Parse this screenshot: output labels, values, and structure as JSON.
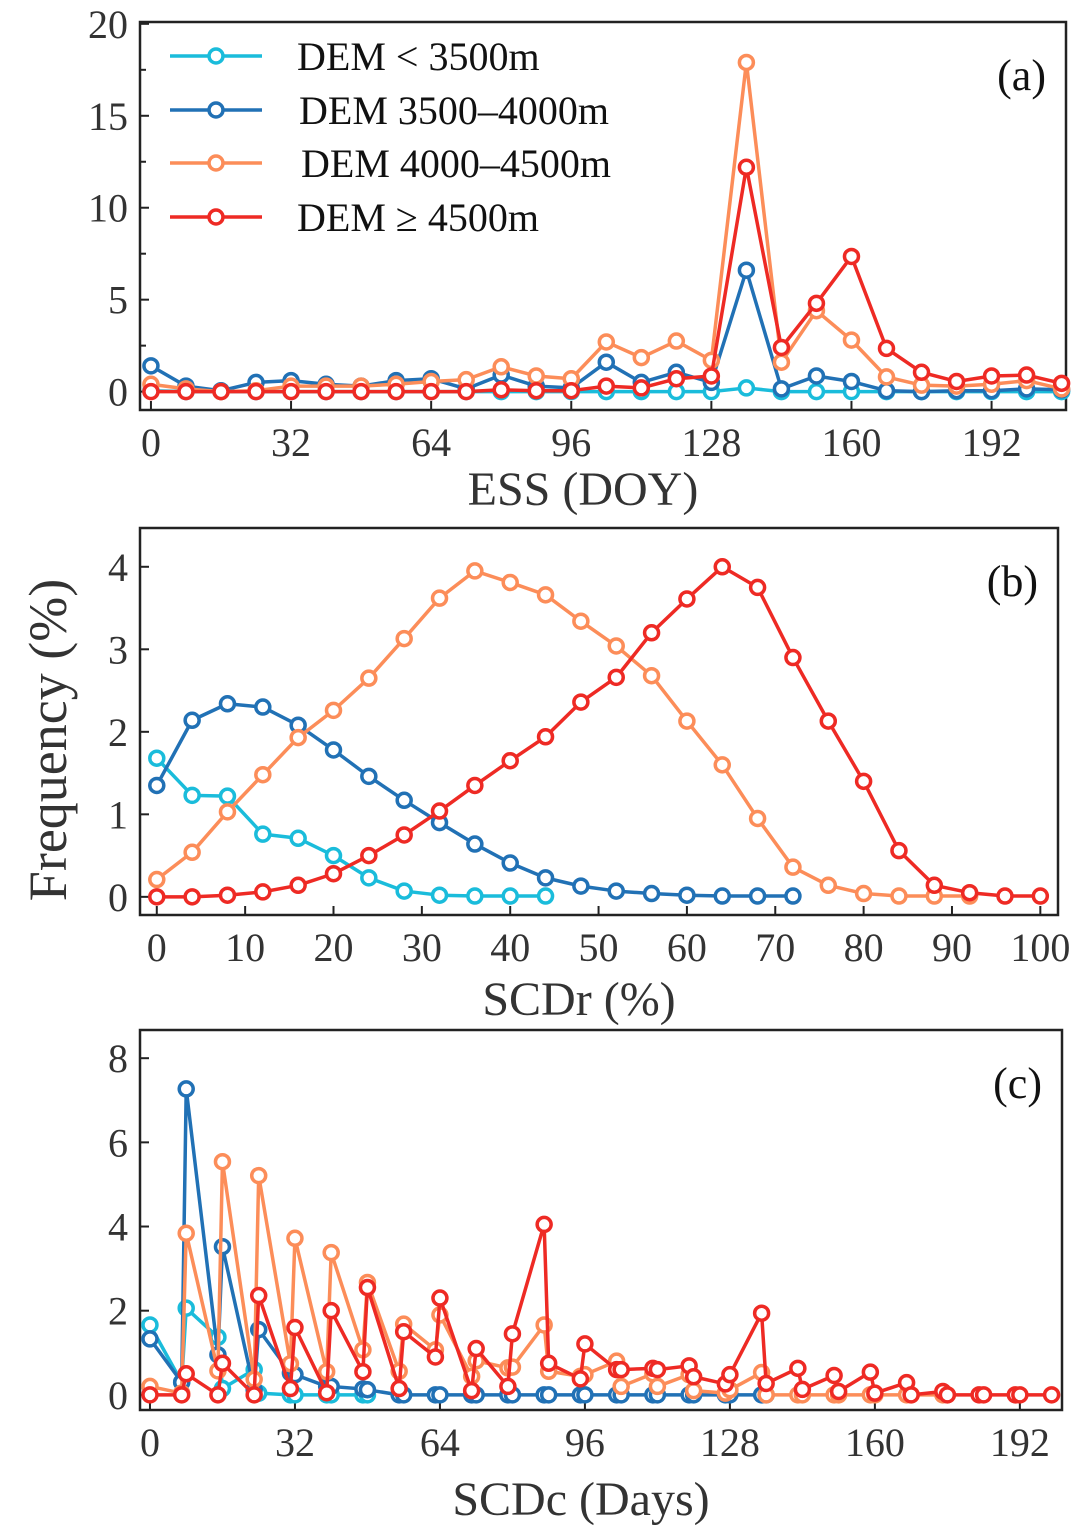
{
  "legend": [
    {
      "label": "DEM < 3500m",
      "color": "#1abcdb"
    },
    {
      "label": "DEM 3500–4000m",
      "color": "#2171b5"
    },
    {
      "label": "DEM 4000–4500m",
      "color": "#fc8d59"
    },
    {
      "label": "DEM ≥ 4500m",
      "color": "#ee2a24"
    }
  ],
  "ylabel": "Frequency (%)",
  "chart_data": [
    {
      "type": "line",
      "panel_label": "(a)",
      "xlabel": "ESS (DOY)",
      "ylabel": "Frequency (%)",
      "xlim": [
        -2.5,
        209
      ],
      "ylim": [
        -1,
        20.1
      ],
      "xticks": [
        0,
        32,
        64,
        96,
        128,
        160,
        192
      ],
      "yticks": [
        0,
        5,
        10,
        15,
        20
      ],
      "yminor": [
        2.5,
        7.5,
        12.5,
        17.5
      ],
      "legend_position": "top-left",
      "x": [
        0,
        8,
        16,
        24,
        32,
        40,
        48,
        56,
        64,
        72,
        80,
        88,
        96,
        104,
        112,
        120,
        128,
        136,
        144,
        152,
        160,
        168,
        176,
        184,
        192,
        200,
        208
      ],
      "series": [
        {
          "name": "DEM < 3500m",
          "values": [
            0.05,
            0,
            0,
            0,
            0,
            0,
            0,
            0,
            0,
            0,
            0,
            0,
            0,
            0,
            0,
            0,
            0,
            0.2,
            0,
            0,
            0,
            0,
            0,
            0,
            0,
            0,
            0
          ]
        },
        {
          "name": "DEM 3500–4000m",
          "values": [
            1.4,
            0.3,
            0.05,
            0.5,
            0.6,
            0.4,
            0.3,
            0.6,
            0.7,
            0.15,
            0.9,
            0.3,
            0.2,
            1.6,
            0.5,
            1.05,
            0.5,
            6.6,
            0.15,
            0.85,
            0.55,
            0.05,
            0,
            0.05,
            0.05,
            0.15,
            0.1
          ]
        },
        {
          "name": "DEM 4000–4500m",
          "values": [
            0.4,
            0.15,
            0,
            0.05,
            0.3,
            0.3,
            0.3,
            0.4,
            0.55,
            0.65,
            1.35,
            0.85,
            0.7,
            2.7,
            1.85,
            2.75,
            1.7,
            17.9,
            1.6,
            4.4,
            2.8,
            0.8,
            0.35,
            0.3,
            0.4,
            0.6,
            0.15
          ]
        },
        {
          "name": "DEM ≥ 4500m",
          "values": [
            0,
            0,
            0,
            0,
            0,
            0,
            0,
            0,
            0,
            0,
            0.1,
            0.05,
            0.05,
            0.3,
            0.2,
            0.7,
            0.85,
            12.2,
            2.4,
            4.8,
            7.35,
            2.35,
            1.05,
            0.55,
            0.85,
            0.9,
            0.45
          ]
        }
      ]
    },
    {
      "type": "line",
      "panel_label": "(b)",
      "xlabel": "SCDr (%)",
      "ylabel": "Frequency (%)",
      "xlim": [
        -1.9,
        102
      ],
      "ylim": [
        -0.22,
        4.47
      ],
      "xticks": [
        0,
        10,
        20,
        30,
        40,
        50,
        60,
        70,
        80,
        90,
        100
      ],
      "yticks": [
        0,
        1,
        2,
        3,
        4
      ],
      "series": [
        {
          "name": "DEM < 3500m",
          "x": [
            0,
            4,
            8,
            12,
            16,
            20,
            24,
            28,
            32,
            36,
            40,
            44
          ],
          "values": [
            1.68,
            1.23,
            1.22,
            0.76,
            0.71,
            0.5,
            0.23,
            0.07,
            0.02,
            0.01,
            0.01,
            0.01
          ]
        },
        {
          "name": "DEM 3500–4000m",
          "x": [
            0,
            4,
            8,
            12,
            16,
            20,
            24,
            28,
            32,
            36,
            40,
            44,
            48,
            52,
            56,
            60,
            64,
            68,
            72
          ],
          "values": [
            1.35,
            2.14,
            2.34,
            2.3,
            2.08,
            1.78,
            1.46,
            1.17,
            0.9,
            0.64,
            0.41,
            0.23,
            0.13,
            0.07,
            0.04,
            0.02,
            0.01,
            0.01,
            0.01
          ]
        },
        {
          "name": "DEM 4000–4500m",
          "x": [
            0,
            4,
            8,
            12,
            16,
            20,
            24,
            28,
            32,
            36,
            40,
            44,
            48,
            52,
            56,
            60,
            64,
            68,
            72,
            76,
            80,
            84,
            88,
            92
          ],
          "values": [
            0.21,
            0.54,
            1.03,
            1.48,
            1.93,
            2.26,
            2.65,
            3.13,
            3.62,
            3.95,
            3.81,
            3.66,
            3.34,
            3.04,
            2.68,
            2.13,
            1.6,
            0.95,
            0.36,
            0.14,
            0.04,
            0.01,
            0.01,
            0.01
          ]
        },
        {
          "name": "DEM ≥ 4500m",
          "x": [
            0,
            4,
            8,
            12,
            16,
            20,
            24,
            28,
            32,
            36,
            40,
            44,
            48,
            52,
            56,
            60,
            64,
            68,
            72,
            76,
            80,
            84,
            88,
            92,
            96,
            100
          ],
          "values": [
            0,
            0,
            0.02,
            0.06,
            0.14,
            0.28,
            0.5,
            0.75,
            1.04,
            1.35,
            1.65,
            1.94,
            2.36,
            2.66,
            3.2,
            3.61,
            4.0,
            3.75,
            2.9,
            2.13,
            1.4,
            0.56,
            0.14,
            0.05,
            0.01,
            0.01
          ]
        }
      ]
    },
    {
      "type": "line",
      "panel_label": "(c)",
      "xlabel": "SCDc (Days)",
      "ylabel": "Frequency (%)",
      "xlim": [
        -2.2,
        201.3
      ],
      "ylim": [
        -0.36,
        8.67
      ],
      "xticks": [
        0,
        32,
        64,
        96,
        128,
        160,
        192
      ],
      "yticks": [
        0,
        2,
        4,
        6,
        8
      ],
      "series": [
        {
          "name": "DEM < 3500m",
          "x": [
            0,
            7,
            8,
            15,
            16,
            23,
            24,
            31,
            32,
            39,
            40,
            47,
            48
          ],
          "values": [
            1.66,
            0.3,
            2.06,
            1.37,
            0.15,
            0.6,
            0.04,
            0,
            0,
            0,
            0,
            0,
            0
          ]
        },
        {
          "name": "DEM 3500–4000m",
          "x": [
            0,
            7,
            8,
            15,
            16,
            23,
            24,
            31,
            32,
            39,
            40,
            47,
            48,
            55,
            56,
            63,
            64,
            71,
            72,
            79,
            80,
            87,
            88,
            95,
            96,
            103,
            104,
            111,
            112,
            119,
            120,
            127,
            128,
            135,
            136
          ],
          "values": [
            1.33,
            0.3,
            7.27,
            0.95,
            3.52,
            0.12,
            1.55,
            0.52,
            0.48,
            0.2,
            0.2,
            0.14,
            0.12,
            0,
            0,
            0,
            0,
            0,
            0,
            0,
            0,
            0,
            0,
            0,
            0,
            0,
            0,
            0,
            0,
            0,
            0,
            0,
            0,
            0,
            0
          ]
        },
        {
          "name": "DEM 4000–4500m",
          "x": [
            0,
            7,
            8,
            15,
            16,
            23,
            24,
            31,
            32,
            39,
            40,
            47,
            48,
            55,
            56,
            63,
            64,
            71,
            72,
            79,
            80,
            87,
            88,
            95,
            96,
            103,
            104,
            111,
            112,
            119,
            120,
            127,
            128,
            135,
            136,
            143,
            144,
            151,
            152,
            159,
            160,
            167,
            168,
            175,
            176
          ],
          "values": [
            0.2,
            0.04,
            3.84,
            0.57,
            5.54,
            0.37,
            5.21,
            0.74,
            3.72,
            0.55,
            3.38,
            1.07,
            2.67,
            0.56,
            1.68,
            1.07,
            1.9,
            0.44,
            0.81,
            0.64,
            0.66,
            1.66,
            0.56,
            0.44,
            0.48,
            0.8,
            0.2,
            0.5,
            0.2,
            0.48,
            0.1,
            0.04,
            0.12,
            0.53,
            0,
            0,
            0,
            0,
            0,
            0,
            0,
            0,
            0,
            0,
            0
          ]
        },
        {
          "name": "DEM ≥ 4500m",
          "x": [
            0,
            7,
            8,
            15,
            16,
            23,
            24,
            31,
            32,
            39,
            40,
            47,
            48,
            55,
            56,
            63,
            64,
            71,
            72,
            79,
            80,
            87,
            88,
            95,
            96,
            103,
            104,
            111,
            112,
            119,
            120,
            127,
            128,
            135,
            136,
            143,
            144,
            151,
            152,
            159,
            160,
            167,
            168,
            175,
            176,
            183,
            184,
            191,
            192,
            199
          ],
          "values": [
            0,
            0,
            0.5,
            0,
            0.75,
            0,
            2.36,
            0.15,
            1.6,
            0.05,
            2.0,
            0.55,
            2.55,
            0.15,
            1.5,
            0.9,
            2.3,
            0.1,
            1.1,
            0.2,
            1.45,
            4.05,
            0.75,
            0.38,
            1.21,
            0.6,
            0.6,
            0.63,
            0.6,
            0.69,
            0.43,
            0.26,
            0.48,
            1.94,
            0.27,
            0.63,
            0.13,
            0.46,
            0.08,
            0.54,
            0.04,
            0.29,
            0,
            0.08,
            0,
            0,
            0,
            0,
            0,
            0
          ]
        }
      ]
    }
  ]
}
